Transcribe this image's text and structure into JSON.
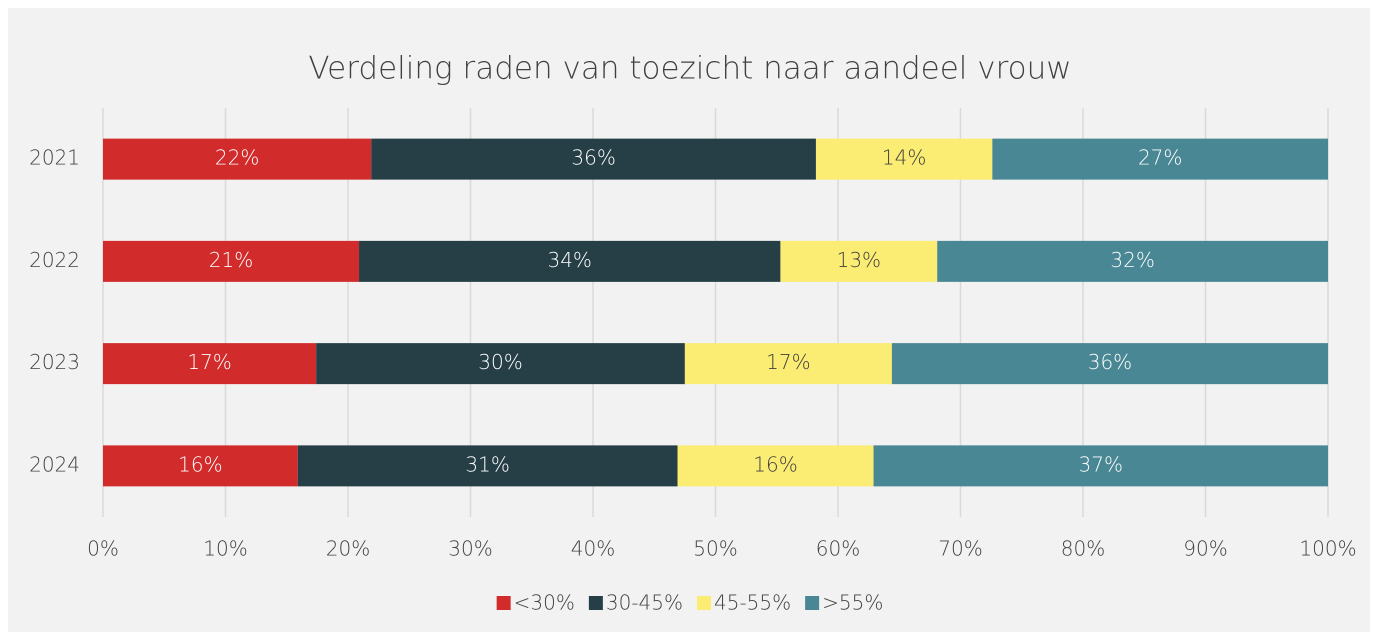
{
  "chart_data": {
    "type": "stacked_barh",
    "title": "Verdeling raden van toezicht naar aandeel vrouw",
    "categories": [
      "2021",
      "2022",
      "2023",
      "2024"
    ],
    "series": [
      {
        "name": "<30%",
        "color": "#d12b2b",
        "values": [
          21.9,
          20.9,
          17.4,
          15.9
        ],
        "value_labels": [
          "22%",
          "21%",
          "17%",
          "16%"
        ]
      },
      {
        "name": "30-45%",
        "color": "#263f47",
        "values": [
          36.3,
          34.4,
          30.1,
          31.0
        ],
        "value_labels": [
          "36%",
          "34%",
          "30%",
          "31%"
        ]
      },
      {
        "name": "45-55%",
        "color": "#fbec74",
        "values": [
          14.4,
          12.8,
          16.9,
          16.0
        ],
        "value_labels": [
          "14%",
          "13%",
          "17%",
          "16%"
        ]
      },
      {
        "name": ">55%",
        "color": "#4a8794",
        "values": [
          27.4,
          31.9,
          35.6,
          37.1
        ],
        "value_labels": [
          "27%",
          "32%",
          "36%",
          "37%"
        ]
      }
    ],
    "xlim": [
      0,
      100
    ],
    "xticks": [
      {
        "value": 0,
        "label": "0%"
      },
      {
        "value": 10,
        "label": "10%"
      },
      {
        "value": 20,
        "label": "20%"
      },
      {
        "value": 30,
        "label": "30%"
      },
      {
        "value": 40,
        "label": "40%"
      },
      {
        "value": 50,
        "label": "50%"
      },
      {
        "value": 60,
        "label": "60%"
      },
      {
        "value": 70,
        "label": "70%"
      },
      {
        "value": 80,
        "label": "80%"
      },
      {
        "value": 90,
        "label": "90%"
      },
      {
        "value": 100,
        "label": "100%"
      }
    ],
    "grid": true,
    "legend": "bottom"
  }
}
